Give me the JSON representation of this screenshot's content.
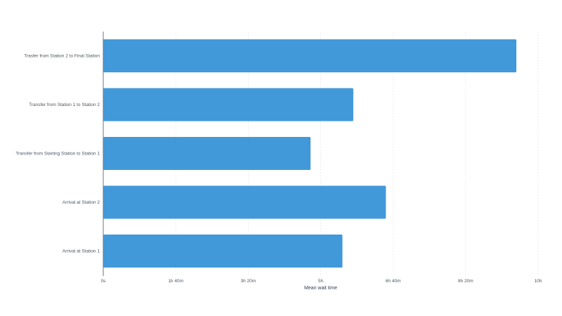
{
  "chart_data": {
    "type": "bar",
    "orientation": "horizontal",
    "categories": [
      "Trasfer from Station 2 to Final Station",
      "Transfer from Station 1 to Station 2",
      "Transfer from Starting Station to  Station 1",
      "Arrival at Station 2",
      "Arrival at Station 1"
    ],
    "values_minutes": [
      570,
      345,
      286,
      390,
      330
    ],
    "xlabel": "Mean wait time",
    "ylabel": "",
    "xlim_minutes": [
      0,
      600
    ],
    "x_ticks": [
      {
        "value": 0,
        "label": "0s"
      },
      {
        "value": 100,
        "label": "1h 40m"
      },
      {
        "value": 200,
        "label": "3h 20m"
      },
      {
        "value": 300,
        "label": "5h"
      },
      {
        "value": 400,
        "label": "6h 40m"
      },
      {
        "value": 500,
        "label": "8h 20m"
      },
      {
        "value": 600,
        "label": "10h"
      }
    ],
    "grid": "vertical-dashed",
    "bar_color": "#4299d9",
    "axis_color": "#6b7280",
    "grid_color": "#e5e7eb"
  }
}
